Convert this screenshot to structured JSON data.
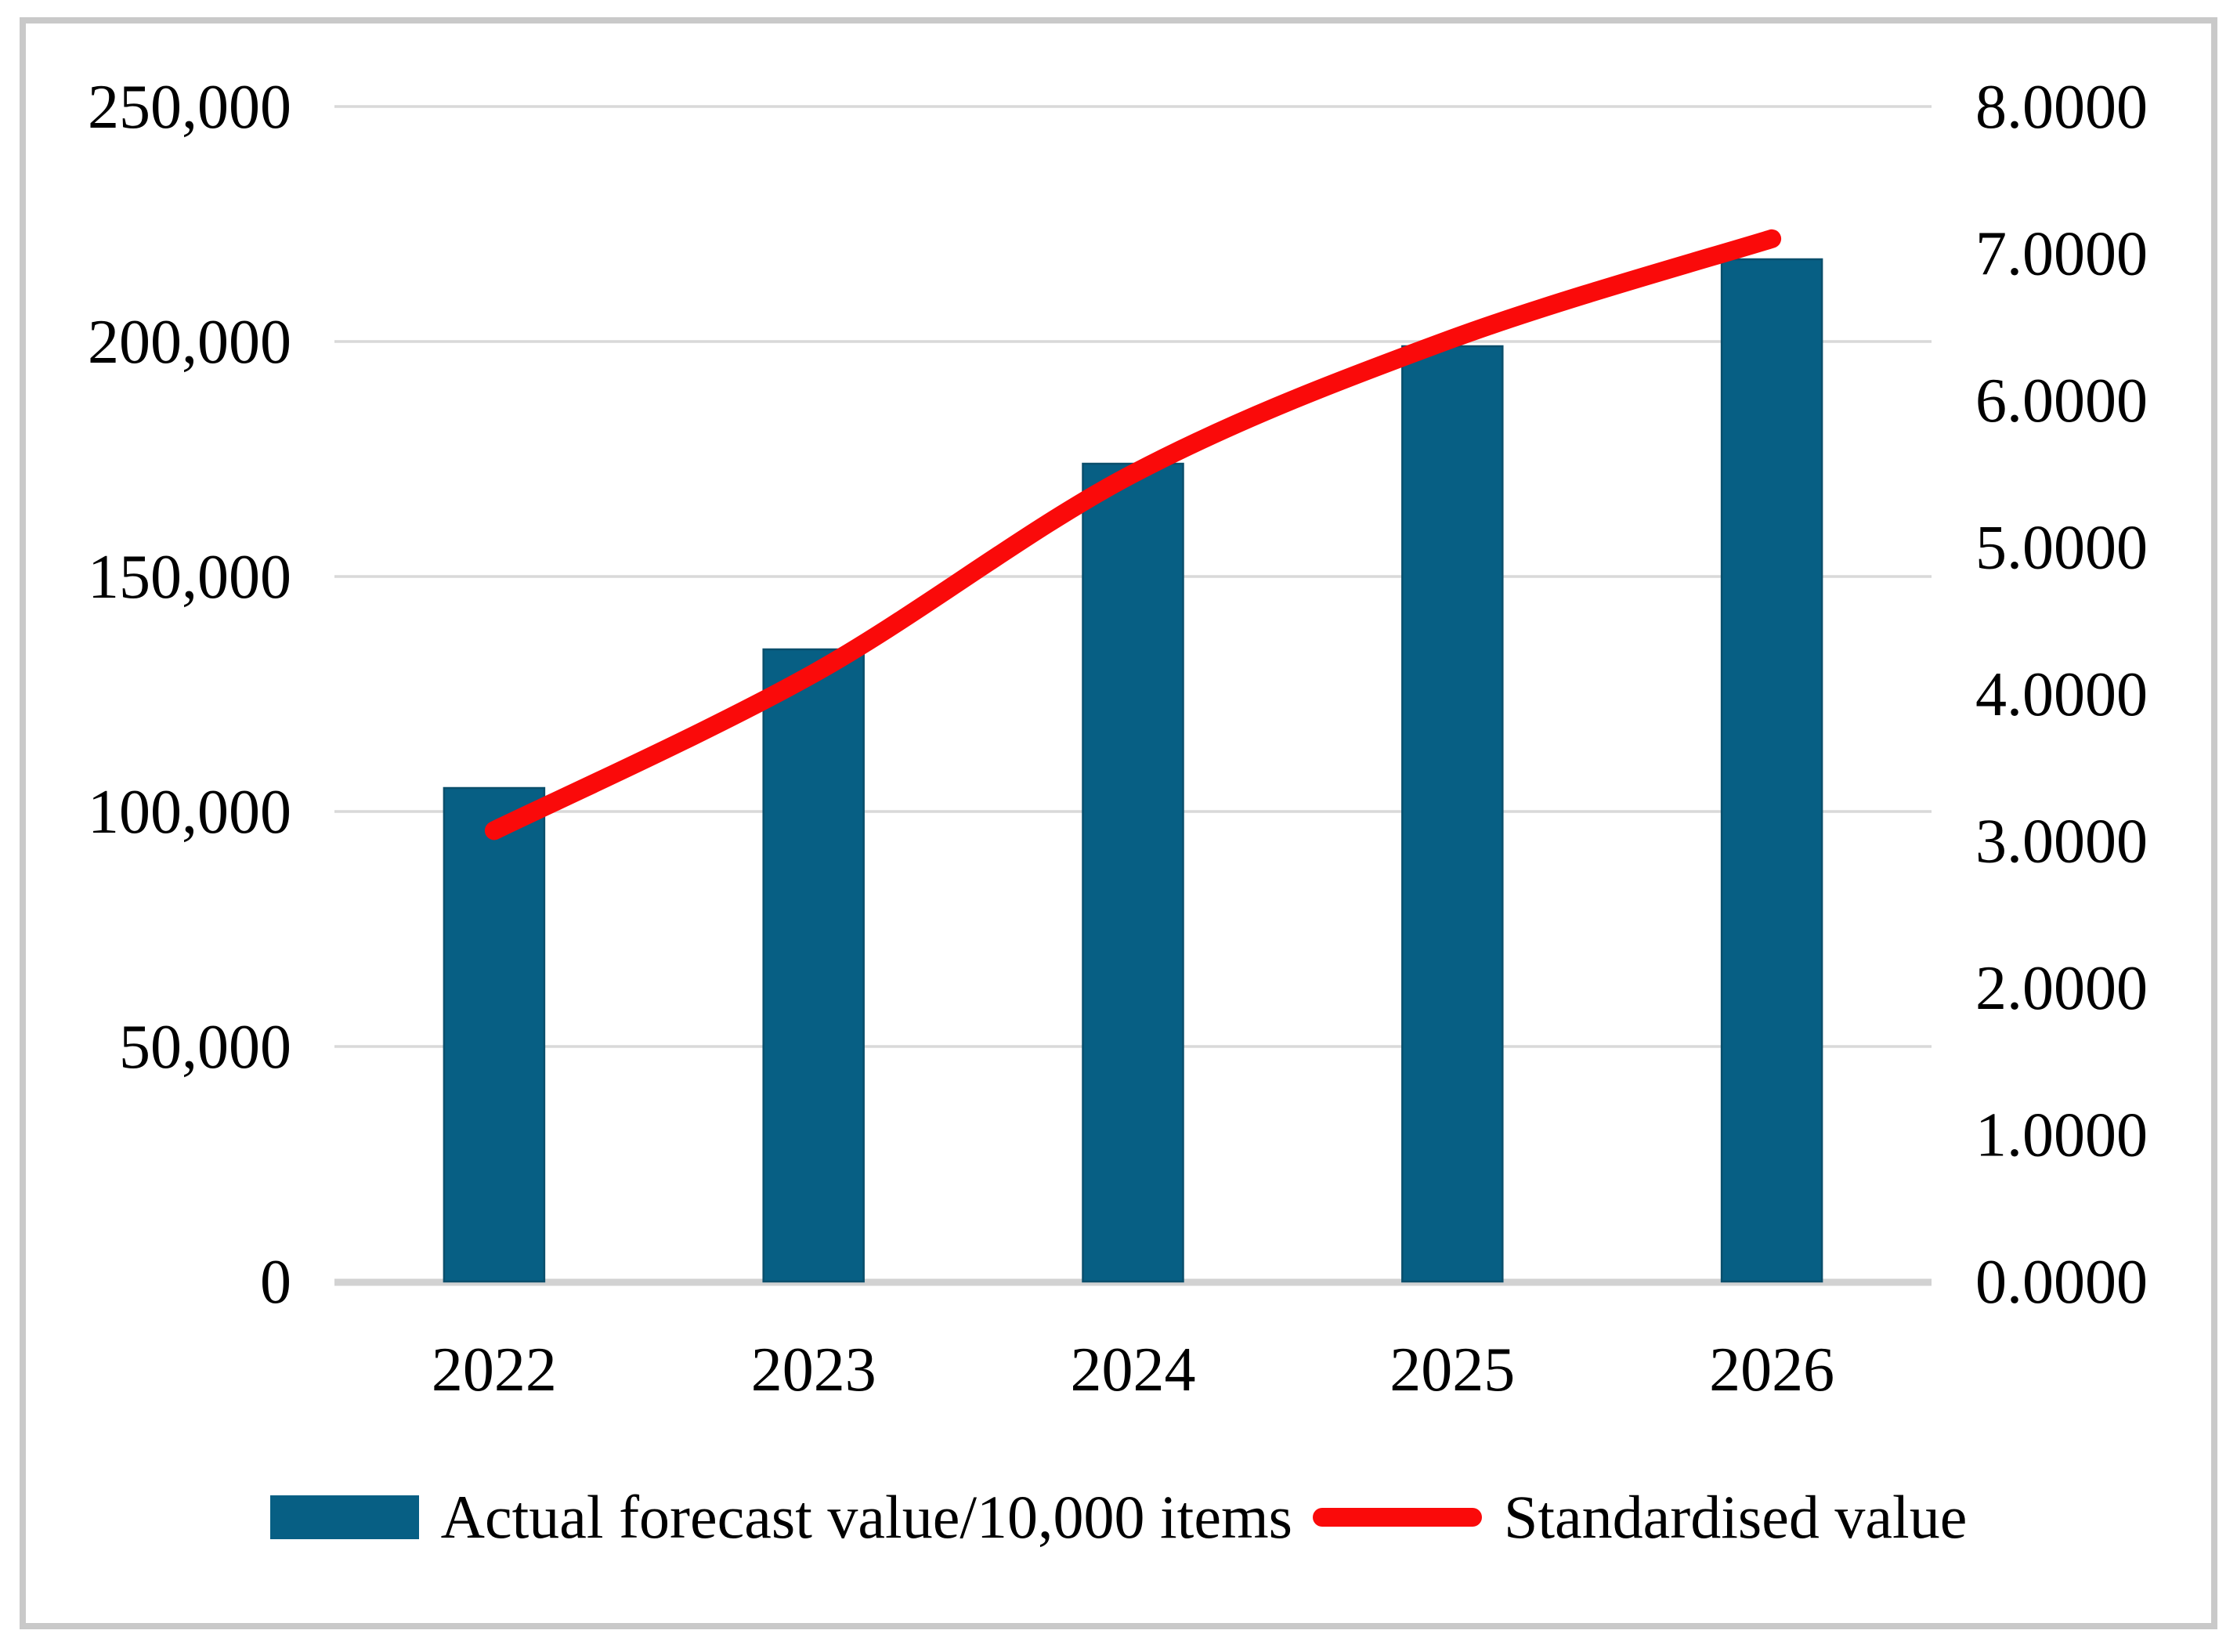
{
  "colors": {
    "bar": "#075f84",
    "bar_edge": "#0a4f6c",
    "line": "#fa0a0a",
    "grid": "#d9d9d9",
    "axis_line": "#d2d2d2",
    "frame": "#c9c9c9",
    "text": "#000000",
    "background": "#ffffff"
  },
  "chart_data": {
    "type": "bar",
    "subtype": "combo-bar-line-dual-axis",
    "title": "",
    "xlabel": "",
    "ylabel_left": "",
    "ylabel_right": "",
    "categories": [
      "2022",
      "2023",
      "2024",
      "2025",
      "2026"
    ],
    "series": [
      {
        "name": "Actual forecast value/10,000 items",
        "type": "bar",
        "axis": "left",
        "color": "#075f84",
        "values": [
          105000,
          134500,
          174000,
          199000,
          217500
        ]
      },
      {
        "name": "Standardised value",
        "type": "line",
        "axis": "right",
        "smooth": true,
        "color": "#fa0a0a",
        "values": [
          3.07,
          4.14,
          5.5,
          6.42,
          7.1
        ]
      }
    ],
    "left_axis": {
      "min": 0,
      "max": 250000,
      "step": 50000,
      "tick_labels": [
        "0",
        "50,000",
        "100,000",
        "150,000",
        "200,000",
        "250,000"
      ]
    },
    "right_axis": {
      "min": 0,
      "max": 8,
      "step": 1,
      "tick_labels": [
        "0.0000",
        "1.0000",
        "2.0000",
        "3.0000",
        "4.0000",
        "5.0000",
        "6.0000",
        "7.0000",
        "8.0000"
      ]
    },
    "grid": "horizontal",
    "legend_position": "bottom"
  },
  "legend": {
    "items": [
      {
        "label": "Actual forecast value/10,000 items",
        "swatch": "bar"
      },
      {
        "label": "Standardised value",
        "swatch": "line"
      }
    ]
  }
}
